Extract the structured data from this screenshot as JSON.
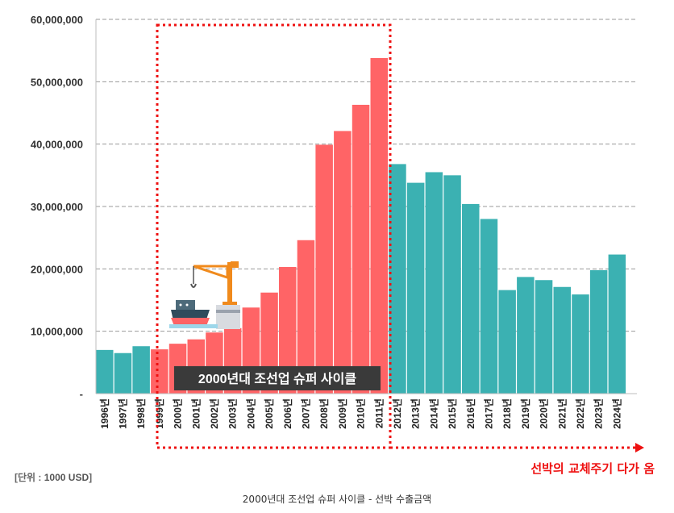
{
  "chart_data": {
    "type": "bar",
    "categories": [
      "1996년",
      "1997년",
      "1998년",
      "1999년",
      "2000년",
      "2001년",
      "2002년",
      "2003년",
      "2004년",
      "2005년",
      "2006년",
      "2007년",
      "2008년",
      "2009년",
      "2010년",
      "2011년",
      "2012년",
      "2013년",
      "2014년",
      "2015년",
      "2016년",
      "2017년",
      "2018년",
      "2019년",
      "2020년",
      "2021년",
      "2022년",
      "2023년",
      "2024년"
    ],
    "values": [
      7000000,
      6500000,
      7600000,
      7100000,
      8000000,
      8700000,
      9800000,
      10500000,
      13800000,
      16200000,
      20300000,
      24600000,
      39900000,
      42100000,
      46300000,
      53800000,
      36800000,
      33800000,
      35500000,
      35000000,
      30400000,
      28000000,
      16600000,
      18700000,
      18200000,
      17100000,
      15900000,
      19800000,
      22300000
    ],
    "highlight_range": [
      "1999년",
      "2011년"
    ],
    "colors": {
      "highlight": "#ff6466",
      "normal": "#3bb1b2",
      "annotation": "#ee1111",
      "callout_bg": "#3a3a3a"
    },
    "ylim": [
      0,
      60000000
    ],
    "yticks": [
      {
        "value": 0,
        "label": "-"
      },
      {
        "value": 10000000,
        "label": "10,000,000"
      },
      {
        "value": 20000000,
        "label": "20,000,000"
      },
      {
        "value": 30000000,
        "label": "30,000,000"
      },
      {
        "value": 40000000,
        "label": "40,000,000"
      },
      {
        "value": 50000000,
        "label": "50,000,000"
      },
      {
        "value": 60000000,
        "label": "60,000,000"
      }
    ],
    "grid": true,
    "callout": "2000년대 조선업 슈퍼 사이클",
    "arrow_label": "선박의 교체주기 다가 옴",
    "illustration": "ship-and-crane-icon"
  },
  "unit_note": {
    "prefix": "[단위 : ",
    "value": "1000 USD",
    "suffix": "]"
  },
  "caption": "2000년대 조선업 슈퍼 사이클 - 선박 수출금액"
}
